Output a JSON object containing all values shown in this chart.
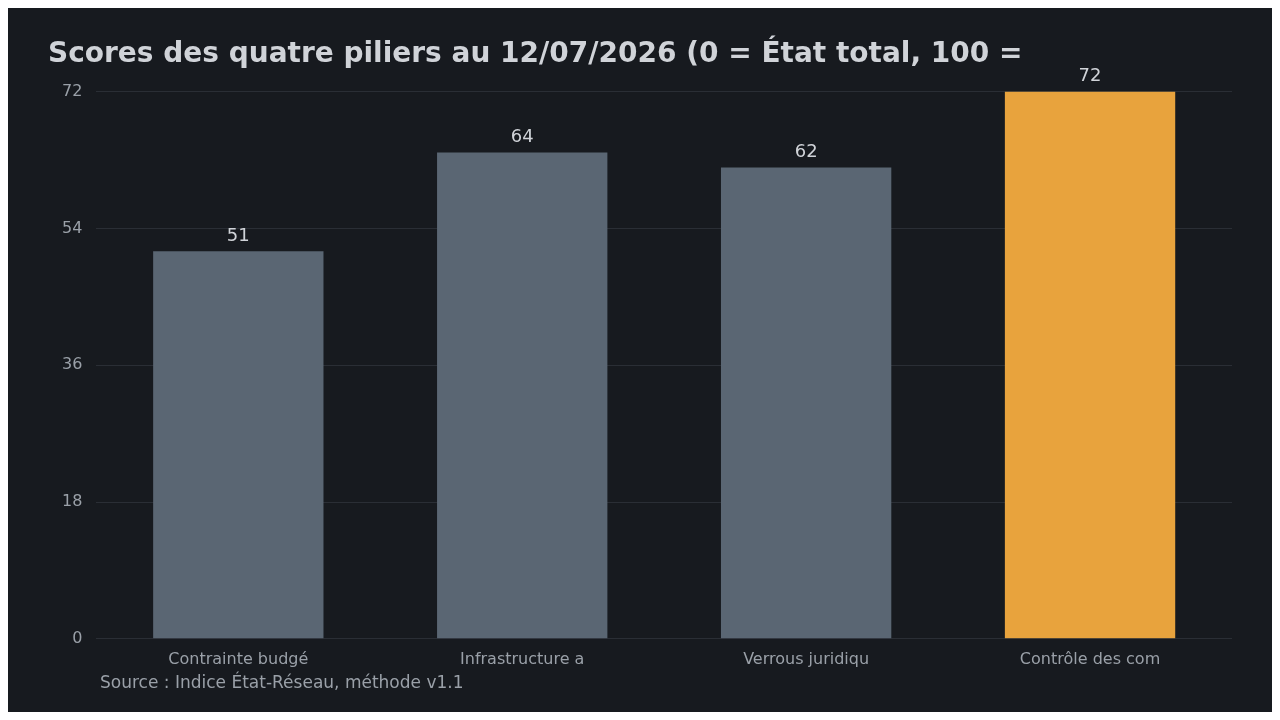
{
  "chart_data": {
    "type": "bar",
    "title": "Scores des quatre piliers au 12/07/2026 (0 = État total, 100 =",
    "categories": [
      "Contrainte budgé",
      "Infrastructure a",
      "Verrous juridiqu",
      "Contrôle des com"
    ],
    "values": [
      51,
      64,
      62,
      72
    ],
    "colors": [
      "#5a6673",
      "#5a6673",
      "#5a6673",
      "#e8a33d"
    ],
    "ylim": [
      0,
      72
    ],
    "yticks": [
      0,
      18,
      36,
      54,
      72
    ],
    "grid": "y",
    "data_labels": true,
    "legend": false,
    "annotations": [
      "Source : Indice État-Réseau, méthode v1.1"
    ]
  }
}
